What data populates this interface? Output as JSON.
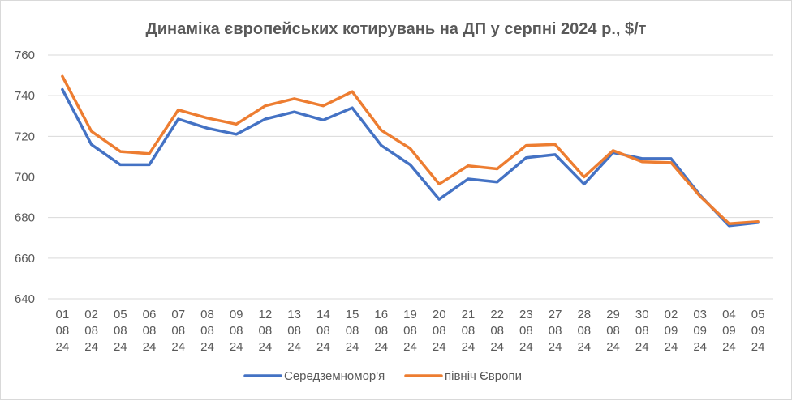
{
  "chart_data": {
    "type": "line",
    "title": "Динаміка європейських котирувань на ДП у серпні 2024 р., $/т",
    "categories": [
      [
        "01",
        "08",
        "24"
      ],
      [
        "02",
        "08",
        "24"
      ],
      [
        "05",
        "08",
        "24"
      ],
      [
        "06",
        "08",
        "24"
      ],
      [
        "07",
        "08",
        "24"
      ],
      [
        "08",
        "08",
        "24"
      ],
      [
        "09",
        "08",
        "24"
      ],
      [
        "12",
        "08",
        "24"
      ],
      [
        "13",
        "08",
        "24"
      ],
      [
        "14",
        "08",
        "24"
      ],
      [
        "15",
        "08",
        "24"
      ],
      [
        "16",
        "08",
        "24"
      ],
      [
        "19",
        "08",
        "24"
      ],
      [
        "20",
        "08",
        "24"
      ],
      [
        "21",
        "08",
        "24"
      ],
      [
        "22",
        "08",
        "24"
      ],
      [
        "23",
        "08",
        "24"
      ],
      [
        "27",
        "08",
        "24"
      ],
      [
        "28",
        "08",
        "24"
      ],
      [
        "29",
        "08",
        "24"
      ],
      [
        "30",
        "08",
        "24"
      ],
      [
        "02",
        "09",
        "24"
      ],
      [
        "03",
        "09",
        "24"
      ],
      [
        "04",
        "09",
        "24"
      ],
      [
        "05",
        "09",
        "24"
      ]
    ],
    "ylim": [
      640,
      760
    ],
    "yticks": [
      640,
      660,
      680,
      700,
      720,
      740,
      760
    ],
    "grid": true,
    "legend_position": "bottom",
    "series": [
      {
        "name": "Середземномор'я",
        "color": "#4472c4",
        "values": [
          743,
          716,
          706,
          706,
          728.5,
          724,
          721,
          728.5,
          732,
          728,
          734,
          715.5,
          706,
          689,
          699,
          697.5,
          709.5,
          711,
          696.5,
          712,
          709,
          709,
          691,
          676,
          677.5
        ]
      },
      {
        "name": "північ Європи",
        "color": "#ed7d31",
        "values": [
          749.5,
          722.5,
          712.5,
          711.5,
          733,
          729,
          726,
          735,
          738.5,
          735,
          742,
          723,
          714,
          696.5,
          705.5,
          704,
          715.5,
          716,
          700,
          713,
          707.5,
          707,
          690.5,
          677,
          678
        ]
      }
    ]
  }
}
